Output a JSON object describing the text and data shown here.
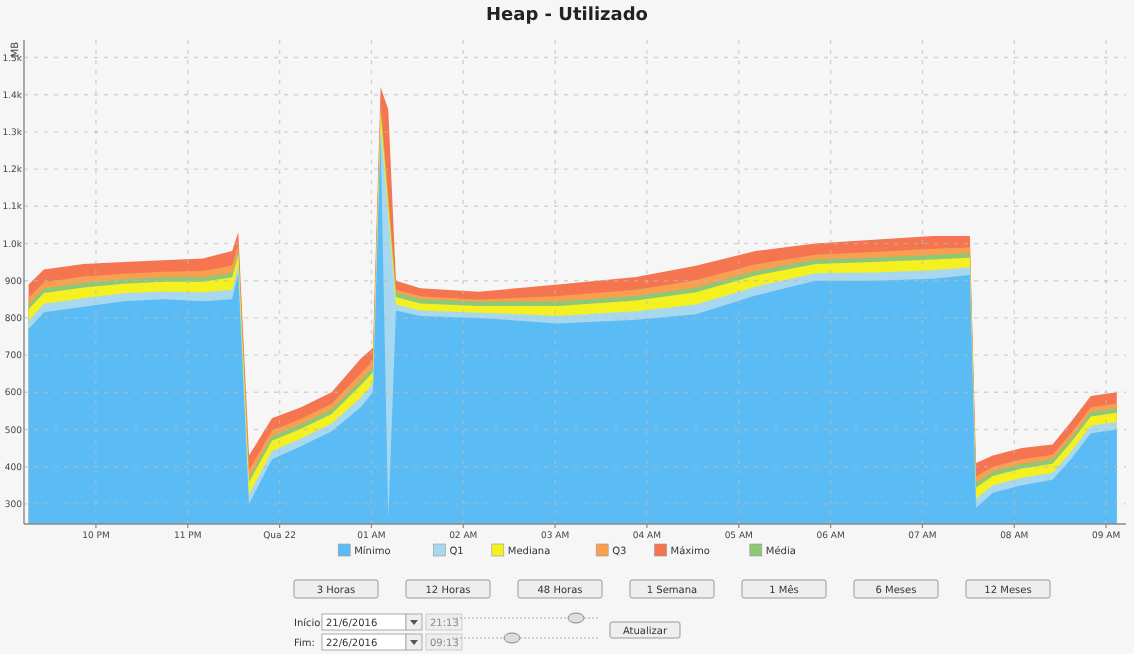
{
  "chart_data": {
    "type": "area",
    "title": "Heap - Utilizado",
    "ylabel": "MB",
    "x": [
      "2016-06-21T21:16",
      "2016-06-21T21:26",
      "2016-06-21T21:52",
      "2016-06-21T22:18",
      "2016-06-21T22:44",
      "2016-06-21T23:10",
      "2016-06-21T23:29",
      "2016-06-21T23:33",
      "2016-06-21T23:40",
      "2016-06-21T23:55",
      "2016-06-22T00:14",
      "2016-06-22T00:34",
      "2016-06-22T00:53",
      "2016-06-22T01:01",
      "2016-06-22T01:06",
      "2016-06-22T01:11",
      "2016-06-22T01:16",
      "2016-06-22T01:32",
      "2016-06-22T02:10",
      "2016-06-22T03:02",
      "2016-06-22T03:53",
      "2016-06-22T04:32",
      "2016-06-22T05:11",
      "2016-06-22T05:50",
      "2016-06-22T06:28",
      "2016-06-22T07:07",
      "2016-06-22T07:31",
      "2016-06-22T07:35",
      "2016-06-22T07:46",
      "2016-06-22T08:05",
      "2016-06-22T08:25",
      "2016-06-22T08:37",
      "2016-06-22T08:50",
      "2016-06-22T09:07"
    ],
    "series": [
      {
        "name": "Mínimo",
        "color": "#5bbcf5",
        "values": [
          770,
          815,
          830,
          845,
          850,
          845,
          850,
          920,
          300,
          420,
          455,
          495,
          560,
          600,
          1290,
          260,
          820,
          805,
          800,
          785,
          795,
          810,
          860,
          900,
          900,
          905,
          915,
          290,
          330,
          350,
          365,
          420,
          490,
          500
        ]
      },
      {
        "name": "Q1",
        "color": "#a8d8f0",
        "values": [
          794,
          838,
          853,
          866,
          871,
          868,
          876,
          942,
          326,
          442,
          476,
          516,
          586,
          624,
          1316,
          null,
          836,
          820,
          814,
          806,
          818,
          836,
          884,
          920,
          922,
          928,
          936,
          314,
          350,
          370,
          384,
          440,
          510,
          520
        ]
      },
      {
        "name": "Mediana",
        "color": "#f5f020",
        "values": [
          824,
          867,
          882,
          892,
          897,
          897,
          909,
          970,
          359,
          470,
          502,
          542,
          619,
          654,
          1349,
          null,
          856,
          839,
          832,
          832,
          847,
          869,
          914,
          945,
          950,
          957,
          962,
          344,
          375,
          395,
          408,
          465,
          535,
          545
        ]
      },
      {
        "name": "Q3",
        "color": "#f8a050",
        "values": [
          854,
          896,
          911,
          919,
          924,
          926,
          941,
          997,
          391,
          497,
          529,
          569,
          651,
          684,
          1381,
          null,
          876,
          858,
          849,
          859,
          876,
          901,
          944,
          970,
          977,
          986,
          989,
          374,
          400,
          420,
          432,
          490,
          560,
          570
        ]
      },
      {
        "name": "Máximo",
        "color": "#f47550",
        "values": [
          890,
          930,
          945,
          950,
          955,
          960,
          980,
          1030,
          430,
          530,
          560,
          600,
          690,
          720,
          1420,
          1360,
          900,
          880,
          870,
          890,
          910,
          940,
          980,
          1000,
          1010,
          1020,
          1020,
          410,
          430,
          450,
          460,
          520,
          590,
          600
        ]
      },
      {
        "name": "Média",
        "color": "#8cc878",
        "values": [
          836,
          879,
          894,
          904,
          909,
          909,
          921,
          982,
          371,
          482,
          514,
          554,
          631,
          666,
          1361,
          null,
          868,
          851,
          844,
          844,
          859,
          881,
          926,
          957,
          962,
          969,
          974,
          356,
          387,
          407,
          420,
          477,
          547,
          557
        ]
      }
    ],
    "xlim": [
      "2016-06-21T21:13",
      "2016-06-22T09:13"
    ],
    "xticks": [
      {
        "value": "2016-06-21T22:00",
        "label": "10 PM"
      },
      {
        "value": "2016-06-21T23:00",
        "label": "11 PM"
      },
      {
        "value": "2016-06-22T00:00",
        "label": "Qua 22"
      },
      {
        "value": "2016-06-22T01:00",
        "label": "01 AM"
      },
      {
        "value": "2016-06-22T02:00",
        "label": "02 AM"
      },
      {
        "value": "2016-06-22T03:00",
        "label": "03 AM"
      },
      {
        "value": "2016-06-22T04:00",
        "label": "04 AM"
      },
      {
        "value": "2016-06-22T05:00",
        "label": "05 AM"
      },
      {
        "value": "2016-06-22T06:00",
        "label": "06 AM"
      },
      {
        "value": "2016-06-22T07:00",
        "label": "07 AM"
      },
      {
        "value": "2016-06-22T08:00",
        "label": "08 AM"
      },
      {
        "value": "2016-06-22T09:00",
        "label": "09 AM"
      }
    ],
    "ylim": [
      246,
      1547
    ],
    "yticks": [
      300,
      400,
      500,
      600,
      700,
      800,
      900,
      {
        "value": 1000,
        "label": "1.0k"
      },
      {
        "value": 1100,
        "label": "1.1k"
      },
      {
        "value": 1200,
        "label": "1.2k"
      },
      {
        "value": 1300,
        "label": "1.3k"
      },
      {
        "value": 1400,
        "label": "1.4k"
      },
      {
        "value": 1500,
        "label": "1.5k"
      }
    ],
    "grid": true,
    "legend": "bottom",
    "annotations": [
      "3 Horas",
      "12 Horas",
      "48 Horas",
      "1 Semana",
      "1 Mês",
      "6 Meses",
      "12 Meses",
      "Início:",
      "21/6/2016",
      "21:13",
      "Fim:",
      "22/6/2016",
      "09:13",
      "Atualizar"
    ]
  }
}
